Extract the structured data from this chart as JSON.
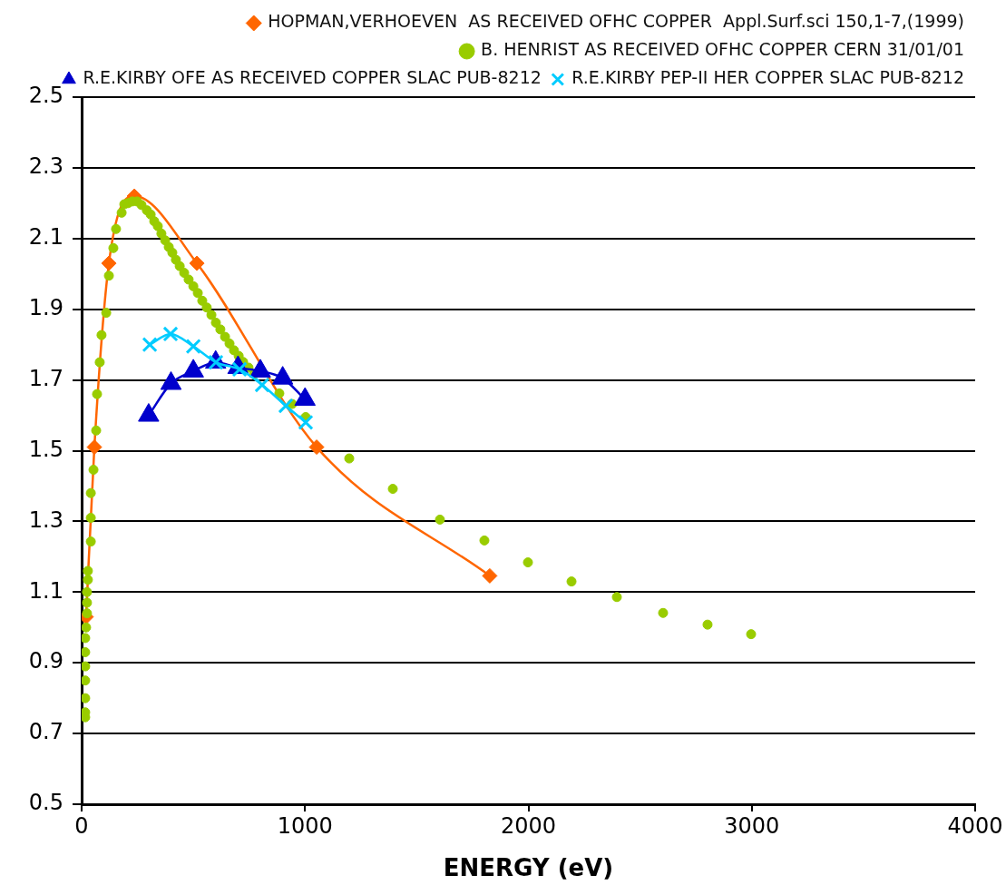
{
  "chart_data": {
    "type": "scatter",
    "xlabel": "ENERGY (eV)",
    "xlim": [
      0,
      4000
    ],
    "xticks": [
      0,
      1000,
      2000,
      3000,
      4000
    ],
    "ylim": [
      0.5,
      2.5
    ],
    "yticks": [
      0.5,
      0.7,
      0.9,
      1.1,
      1.3,
      1.5,
      1.7,
      1.9,
      2.1,
      2.3,
      2.5
    ],
    "grid": "y",
    "legend": "top right",
    "series": [
      {
        "name": "HOPMAN,VERHOEVEN  AS RECEIVED OFHC COPPER  Appl.Surf.sci 150,1-7,(1999)",
        "type": "line",
        "marker": "diamond",
        "color": "#ff6600",
        "x": [
          20,
          57,
          122,
          236,
          516,
          1052,
          1827
        ],
        "values": [
          1.03,
          1.51,
          2.03,
          2.22,
          2.03,
          1.51,
          1.146
        ]
      },
      {
        "name": "B. HENRIST AS RECEIVED OFHC COPPER CERN 31/01/01",
        "type": "scatter",
        "marker": "circle",
        "color": "#99cc00",
        "x": [
          16,
          16,
          16,
          16,
          16,
          16,
          16,
          20,
          24,
          24,
          24,
          28,
          28,
          41,
          41,
          41,
          53,
          65,
          69,
          81,
          89,
          110,
          122,
          142,
          154,
          179,
          191,
          207,
          227,
          248,
          268,
          292,
          309,
          325,
          341,
          357,
          374,
          390,
          406,
          422,
          439,
          459,
          479,
          500,
          520,
          540,
          560,
          581,
          601,
          621,
          642,
          662,
          682,
          703,
          723,
          747,
          772,
          885,
          942,
          1003,
          1198,
          1393,
          1604,
          1803,
          1998,
          2193,
          2396,
          2603,
          2802,
          2997
        ],
        "values": [
          0.746,
          0.76,
          0.8,
          0.85,
          0.89,
          0.93,
          0.97,
          1.0,
          1.04,
          1.07,
          1.1,
          1.135,
          1.16,
          1.243,
          1.31,
          1.38,
          1.446,
          1.557,
          1.66,
          1.75,
          1.827,
          1.89,
          1.995,
          2.073,
          2.127,
          2.173,
          2.197,
          2.2,
          2.205,
          2.205,
          2.195,
          2.18,
          2.168,
          2.149,
          2.135,
          2.114,
          2.095,
          2.076,
          2.06,
          2.04,
          2.022,
          2.003,
          1.984,
          1.965,
          1.946,
          1.924,
          1.905,
          1.884,
          1.862,
          1.843,
          1.822,
          1.803,
          1.784,
          1.768,
          1.751,
          1.735,
          1.716,
          1.662,
          1.632,
          1.595,
          1.478,
          1.392,
          1.305,
          1.246,
          1.184,
          1.13,
          1.086,
          1.041,
          1.008,
          0.981
        ]
      },
      {
        "name": "R.E.KIRBY OFE AS RECEIVED COPPER SLAC PUB-8212",
        "type": "line",
        "marker": "triangle",
        "color": "#0000cc",
        "x": [
          300,
          400,
          500,
          600,
          700,
          800,
          900,
          1000
        ],
        "values": [
          1.6,
          1.69,
          1.725,
          1.75,
          1.735,
          1.725,
          1.705,
          1.645
        ]
      },
      {
        "name": "R.E.KIRBY PEP-II HER COPPER SLAC PUB-8212",
        "type": "line",
        "marker": "cross",
        "color": "#00ccff",
        "x": [
          305,
          398,
          500,
          601,
          707,
          808,
          914,
          1003
        ],
        "values": [
          1.8,
          1.83,
          1.795,
          1.75,
          1.73,
          1.686,
          1.627,
          1.58
        ]
      }
    ]
  }
}
